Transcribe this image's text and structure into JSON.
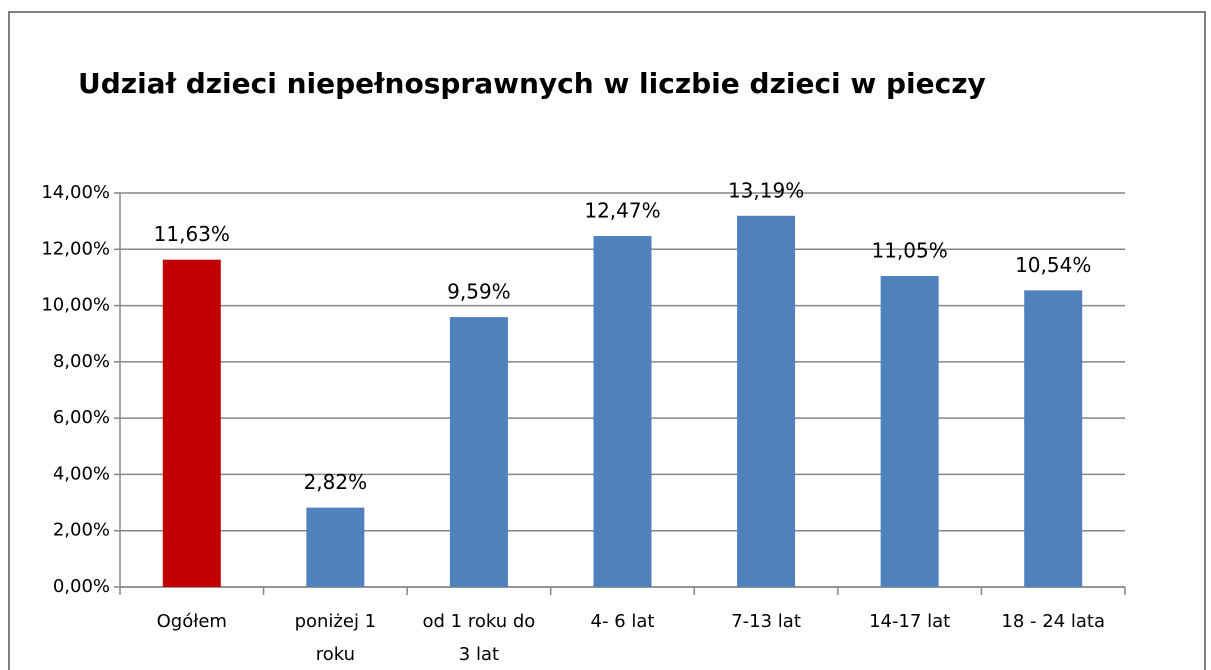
{
  "chart_data": {
    "type": "bar",
    "title": "Udział dzieci niepełnosprawnych w liczbie dzieci w pieczy",
    "categories": [
      "Ogółem",
      "poniżej 1 roku",
      "od 1 roku do 3 lat",
      "4- 6 lat",
      "7-13 lat",
      "14-17 lat",
      "18 - 24 lata"
    ],
    "values": [
      11.63,
      2.82,
      9.59,
      12.47,
      13.19,
      11.05,
      10.54
    ],
    "value_labels": [
      "11,63%",
      "2,82%",
      "9,59%",
      "12,47%",
      "13,19%",
      "11,05%",
      "10,54%"
    ],
    "colors": [
      "#c00000",
      "#4f81bd",
      "#4f81bd",
      "#4f81bd",
      "#4f81bd",
      "#4f81bd",
      "#4f81bd"
    ],
    "ylim": [
      0,
      14
    ],
    "yticks": [
      {
        "value": 0,
        "label": "0,00%"
      },
      {
        "value": 2,
        "label": "2,00%"
      },
      {
        "value": 4,
        "label": "4,00%"
      },
      {
        "value": 6,
        "label": "6,00%"
      },
      {
        "value": 8,
        "label": "8,00%"
      },
      {
        "value": 10,
        "label": "10,00%"
      },
      {
        "value": 12,
        "label": "12,00%"
      },
      {
        "value": 14,
        "label": "14,00%"
      }
    ],
    "grid": true
  }
}
